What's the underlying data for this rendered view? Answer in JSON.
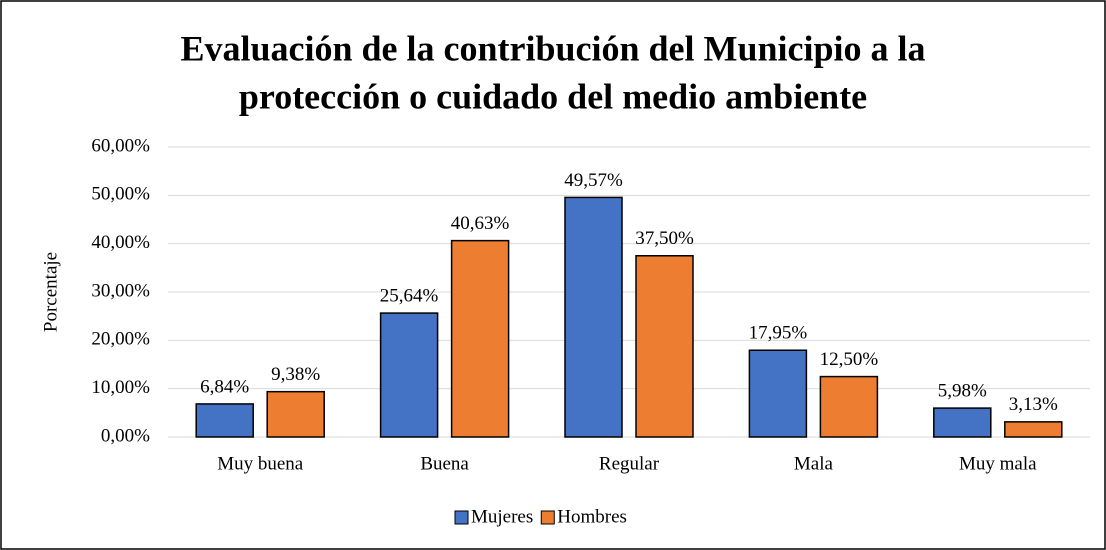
{
  "chart_data": {
    "type": "bar",
    "title": [
      "Evaluación de la contribución del Municipio a la",
      "protección o cuidado del medio ambiente"
    ],
    "y_label": "Porcentaje",
    "categories": [
      "Muy buena",
      "Buena",
      "Regular",
      "Mala",
      "Muy mala"
    ],
    "series": [
      {
        "name": "Mujeres",
        "color": "#4472c4",
        "values": [
          6.84,
          25.64,
          49.57,
          17.95,
          5.98
        ],
        "value_labels": [
          "6,84%",
          "25,64%",
          "49,57%",
          "17,95%",
          "5,98%"
        ]
      },
      {
        "name": "Hombres",
        "color": "#ed7d31",
        "values": [
          9.38,
          40.63,
          37.5,
          12.5,
          3.13
        ],
        "value_labels": [
          "9,38%",
          "40,63%",
          "37,50%",
          "12,50%",
          "3,13%"
        ]
      }
    ],
    "ylim": [
      0,
      60
    ],
    "yticks": [
      {
        "value": 0,
        "label": "0,00%"
      },
      {
        "value": 10,
        "label": "10,00%"
      },
      {
        "value": 20,
        "label": "20,00%"
      },
      {
        "value": 30,
        "label": "30,00%"
      },
      {
        "value": 40,
        "label": "40,00%"
      },
      {
        "value": 50,
        "label": "50,00%"
      },
      {
        "value": 60,
        "label": "60,00%"
      }
    ],
    "grid": true,
    "legend": "bottom"
  }
}
